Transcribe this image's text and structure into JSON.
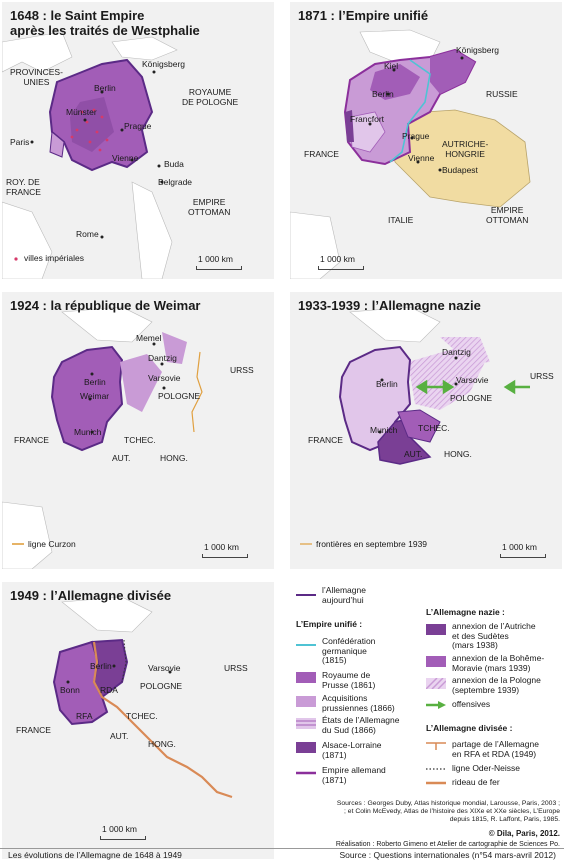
{
  "panels": {
    "p1648": {
      "title": "1648 : le Saint Empire\naprès les traités de Westphalie",
      "labels": {
        "provinces_unies": "PROVINCES-\nUNIES",
        "konigsberg": "Königsberg",
        "berlin": "Berlin",
        "royaume_pologne": "ROYAUME\nDE POLOGNE",
        "munster": "Münster",
        "paris": "Paris",
        "prague": "Prague",
        "vienne": "Vienne",
        "buda": "Buda",
        "roy_france": "ROY. DE\nFRANCE",
        "belgrade": "Belgrade",
        "empire_ottoman": "EMPIRE\nOTTOMAN",
        "rome": "Rome"
      },
      "legend_villes": "villes impériales",
      "scale": "1 000 km"
    },
    "p1871": {
      "title": "1871 : l’Empire unifié",
      "labels": {
        "kiel": "Kiel",
        "konigsberg": "Königsberg",
        "berlin": "Berlin",
        "russie": "RUSSIE",
        "francfort": "Francfort",
        "prague": "Prague",
        "autriche_hongrie": "AUTRICHE-\nHONGRIE",
        "france": "FRANCE",
        "vienne": "Vienne",
        "budapest": "Budapest",
        "italie": "ITALIE",
        "empire_ottoman": "EMPIRE\nOTTOMAN"
      },
      "scale": "1 000 km"
    },
    "p1924": {
      "title": "1924 : la république de Weimar",
      "labels": {
        "memel": "Memel",
        "dantzig": "Dantzig",
        "berlin": "Berlin",
        "urss": "URSS",
        "varsovie": "Varsovie",
        "weimar": "Weimar",
        "pologne": "POLOGNE",
        "france": "FRANCE",
        "tchec": "TCHEC.",
        "munich": "Munich",
        "aut": "AUT.",
        "hong": "HONG."
      },
      "legend_curzon": "ligne Curzon",
      "scale": "1 000 km"
    },
    "p1933": {
      "title": "1933-1939 :  l’Allemagne nazie",
      "labels": {
        "dantzig": "Dantzig",
        "berlin": "Berlin",
        "urss": "URSS",
        "varsovie": "Varsovie",
        "pologne": "POLOGNE",
        "france": "FRANCE",
        "munich": "Munich",
        "tchec": "TCHEC.",
        "aut": "AUT.",
        "hong": "HONG."
      },
      "legend_frontieres": "frontières en septembre 1939",
      "scale": "1 000 km"
    },
    "p1949": {
      "title": "1949 : l’Allemagne divisée",
      "labels": {
        "berlin": "Berlin",
        "varsovie": "Varsovie",
        "urss": "URSS",
        "pologne": "POLOGNE",
        "bonn": "Bonn",
        "rda": "RDA",
        "rfa": "RFA",
        "tchec": "TCHEC.",
        "france": "FRANCE",
        "aut": "AUT.",
        "hong": "HONG."
      },
      "scale": "1 000 km"
    }
  },
  "legend": {
    "allemagne_aujourdhui": "l’Allemagne\naujourd’hui",
    "empire_unifie_header": "L’Empire unifié :",
    "confederation": "Confédération\ngermanique\n(1815)",
    "royaume_prusse": "Royaume de\nPrusse (1861)",
    "acquisitions": "Acquisitions\nprussiennes (1866)",
    "etats_sud": "États de l’Allemagne\ndu Sud (1866)",
    "alsace_lorraine": "Alsace-Lorraine\n(1871)",
    "empire_allemand": "Empire allemand\n(1871)",
    "nazie_header": "L’Allemagne nazie :",
    "annexion_autriche": "annexion de l’Autriche\net des Sudètes\n(mars 1938)",
    "annexion_boheme": "annexion de la Bohême-\nMoravie (mars 1939)",
    "annexion_pologne": "annexion de la Pologne\n(septembre 1939)",
    "offensives": "offensives",
    "divisee_header": "L’Allemagne divisée :",
    "partage": "partage de l’Allemagne\nen RFA et RDA (1949)",
    "oder_neisse": "ligne Oder-Neisse",
    "rideau": "rideau de fer"
  },
  "sources": "Sources : Georges Duby, Atlas historique mondial, Larousse, Paris, 2003 ;\n; et Colin McEvedy, Atlas de l’histoire des XIXe et XXe siècles, L’Europe\ndepuis 1815, R. Laffont, Paris, 1985.",
  "copyright": "© Dila, Paris, 2012.",
  "realisation": "Réalisation : Roberto Gimeno et Atelier de cartographie de Sciences Po.",
  "footer_left": "Les évolutions de l’Allemagne de 1648 à 1949",
  "footer_right": "Source : Questions internationales (n°54 mars-avril 2012)",
  "colors": {
    "dark_purple": "#7a3f95",
    "medium_purple": "#a25db7",
    "light_purple": "#c99bd6",
    "pale_purple": "#e1c6ea",
    "border_purple": "#5b2a86",
    "austria_beige": "#f1dca2",
    "cyan_line": "#4fc3d4",
    "iron_curtain": "#d98a56",
    "green_arrow": "#58b041",
    "curzon": "#e0a040"
  }
}
